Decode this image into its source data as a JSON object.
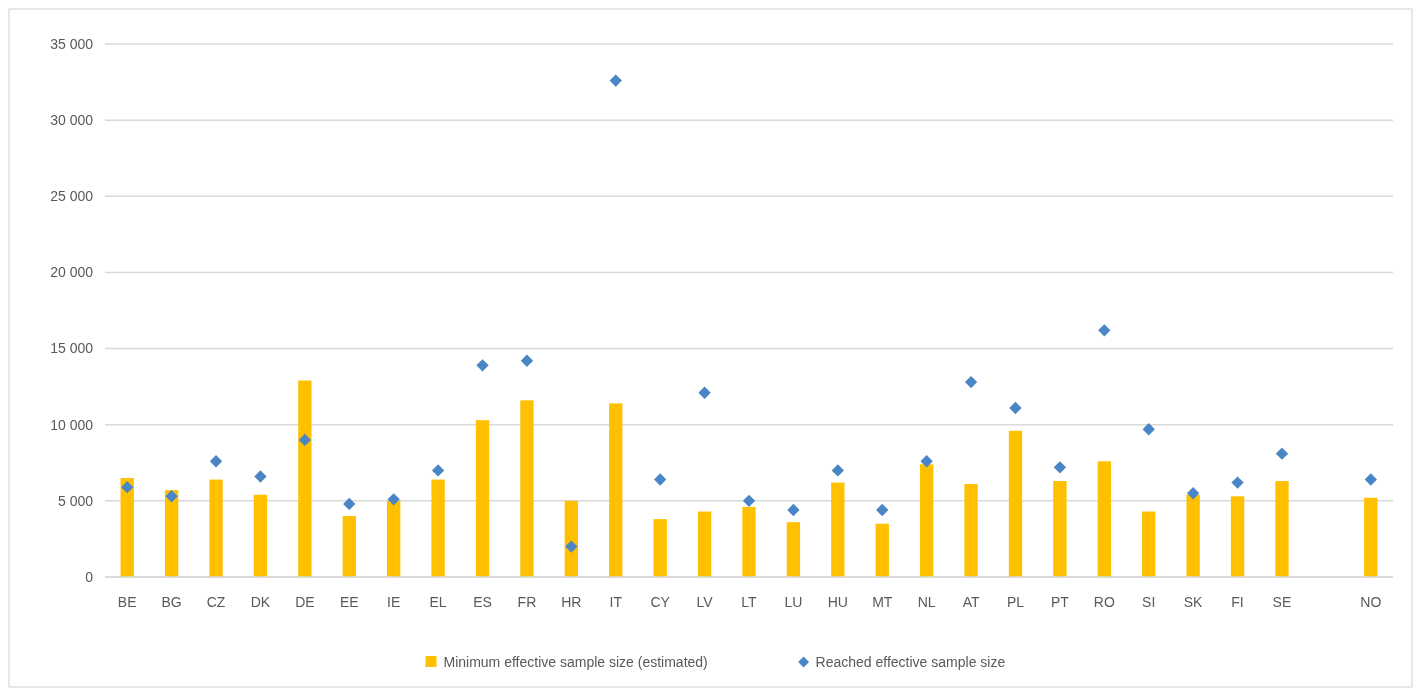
{
  "chart_data": {
    "type": "bar",
    "categories": [
      "BE",
      "BG",
      "CZ",
      "DK",
      "DE",
      "EE",
      "IE",
      "EL",
      "ES",
      "FR",
      "HR",
      "IT",
      "CY",
      "LV",
      "LT",
      "LU",
      "HU",
      "MT",
      "NL",
      "AT",
      "PL",
      "PT",
      "RO",
      "SI",
      "SK",
      "FI",
      "SE",
      null,
      "NO"
    ],
    "series": [
      {
        "name": "Minimum effective sample size (estimated)",
        "color": "#ffc000",
        "values": [
          6500,
          5700,
          6400,
          5400,
          12900,
          4000,
          5000,
          6400,
          10300,
          11600,
          5000,
          11400,
          3800,
          4300,
          4600,
          3600,
          6200,
          3500,
          7400,
          6100,
          9600,
          6300,
          7600,
          4300,
          5400,
          5300,
          6300,
          null,
          5200
        ]
      },
      {
        "name": "Reached effective sample size",
        "type": "scatter",
        "marker": "diamond",
        "color": "#4a86c5",
        "values": [
          5900,
          5300,
          7600,
          6600,
          9000,
          4800,
          5100,
          7000,
          13900,
          14200,
          2000,
          32600,
          6400,
          12100,
          5000,
          4400,
          7000,
          4400,
          7600,
          12800,
          11100,
          7200,
          16200,
          9700,
          5500,
          6200,
          8100,
          null,
          6400
        ]
      }
    ],
    "ylim": [
      0,
      35000
    ],
    "yticks": [
      {
        "value": 0,
        "label": "0"
      },
      {
        "value": 5000,
        "label": "5 000"
      },
      {
        "value": 10000,
        "label": "10 000"
      },
      {
        "value": 15000,
        "label": "15 000"
      },
      {
        "value": 20000,
        "label": "20 000"
      },
      {
        "value": 25000,
        "label": "25 000"
      },
      {
        "value": 30000,
        "label": "30 000"
      },
      {
        "value": 35000,
        "label": "35 000"
      }
    ],
    "grid": "y",
    "legend": "bottom"
  }
}
